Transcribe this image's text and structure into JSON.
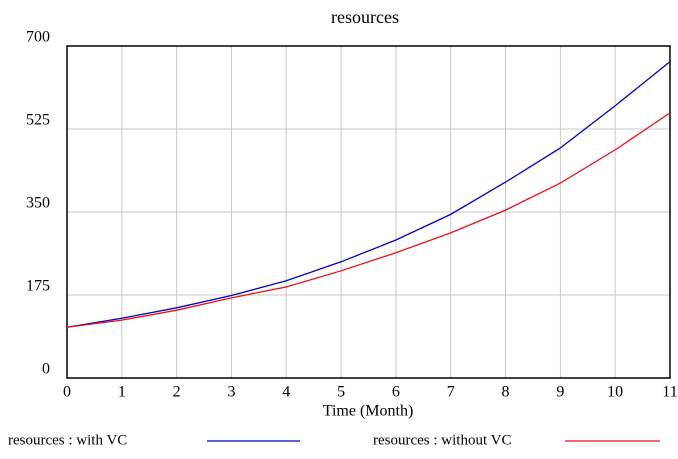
{
  "chart_data": {
    "type": "line",
    "title": "resources",
    "x_label": "Time (Month)",
    "x": [
      0,
      1,
      2,
      3,
      4,
      5,
      6,
      7,
      8,
      9,
      10,
      11
    ],
    "xlim": [
      0,
      11
    ],
    "xticks": [
      0,
      1,
      2,
      3,
      4,
      5,
      6,
      7,
      8,
      9,
      10,
      11
    ],
    "ylim": [
      0,
      700
    ],
    "yticks": [
      0,
      175,
      350,
      525,
      700
    ],
    "grid": true,
    "series": [
      {
        "name": "resources : with VC",
        "color": "#0000cc",
        "values": [
          107,
          126,
          148,
          174,
          205,
          245,
          291,
          345,
          413,
          485,
          574,
          667
        ]
      },
      {
        "name": "resources : without VC",
        "color": "#ee1111",
        "values": [
          107,
          122,
          143,
          169,
          192,
          226,
          264,
          306,
          354,
          411,
          481,
          559
        ]
      }
    ]
  }
}
